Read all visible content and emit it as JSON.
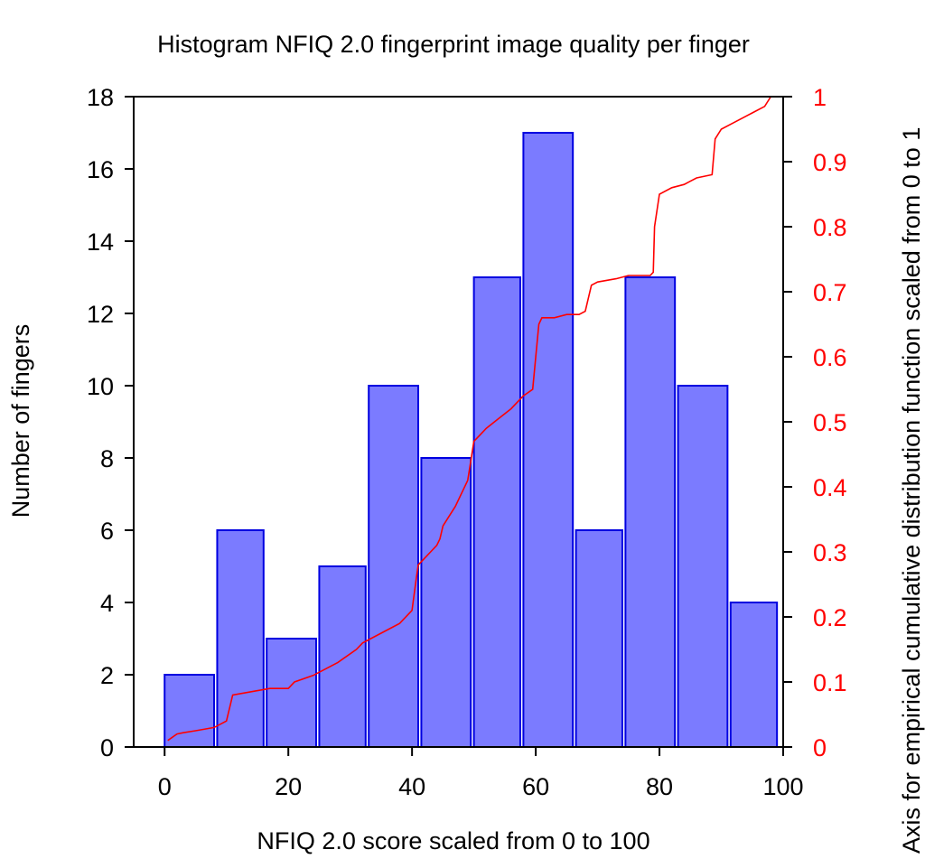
{
  "chart_data": {
    "type": "bar",
    "title": "Histogram NFIQ 2.0 fingerprint image quality per finger",
    "xlabel": "NFIQ 2.0 score scaled from 0 to 100",
    "ylabel": "Number of fingers",
    "y2label": "Axis for empirical cumulative distribution function scaled from 0 to 1",
    "xlim": [
      -5,
      100
    ],
    "ylim": [
      0,
      18
    ],
    "y2lim": [
      0,
      1
    ],
    "x_ticks": [
      "0",
      "20",
      "40",
      "60",
      "80",
      "100"
    ],
    "y_ticks": [
      "0",
      "2",
      "4",
      "6",
      "8",
      "10",
      "12",
      "14",
      "16",
      "18"
    ],
    "y2_ticks": [
      "0",
      "0.1",
      "0.2",
      "0.3",
      "0.4",
      "0.5",
      "0.6",
      "0.7",
      "0.8",
      "0.9",
      "1"
    ],
    "grid": false,
    "legend": "none",
    "bars": [
      {
        "x0": 0,
        "x1": 8,
        "value": 2
      },
      {
        "x0": 8.5,
        "x1": 16,
        "value": 6
      },
      {
        "x0": 16.5,
        "x1": 24.5,
        "value": 3
      },
      {
        "x0": 25,
        "x1": 32.5,
        "value": 5
      },
      {
        "x0": 33,
        "x1": 41,
        "value": 10
      },
      {
        "x0": 41.5,
        "x1": 49.5,
        "value": 8
      },
      {
        "x0": 50,
        "x1": 57.5,
        "value": 13
      },
      {
        "x0": 58,
        "x1": 66,
        "value": 17
      },
      {
        "x0": 66.5,
        "x1": 74,
        "value": 6
      },
      {
        "x0": 74.5,
        "x1": 82.5,
        "value": 13
      },
      {
        "x0": 83,
        "x1": 91,
        "value": 10
      },
      {
        "x0": 91.5,
        "x1": 99,
        "value": 4
      }
    ],
    "ecdf": {
      "x": [
        0.5,
        2,
        3,
        5,
        8,
        10,
        11,
        14,
        17,
        20,
        21,
        24,
        28,
        31,
        32,
        35,
        38,
        40,
        40.7,
        41,
        43,
        44,
        44.5,
        45,
        47,
        49,
        50,
        51,
        52,
        54,
        56,
        58,
        59.5,
        60,
        60.5,
        61,
        63,
        65,
        67,
        68,
        69,
        70,
        73,
        75,
        78.5,
        79,
        79.2,
        80,
        82,
        84,
        86,
        88.5,
        89,
        90,
        92,
        95,
        97,
        98
      ],
      "y": [
        0.01,
        0.02,
        0.022,
        0.025,
        0.03,
        0.04,
        0.08,
        0.085,
        0.09,
        0.09,
        0.1,
        0.11,
        0.13,
        0.15,
        0.16,
        0.175,
        0.19,
        0.21,
        0.26,
        0.28,
        0.3,
        0.31,
        0.32,
        0.34,
        0.37,
        0.41,
        0.47,
        0.48,
        0.49,
        0.505,
        0.52,
        0.54,
        0.55,
        0.6,
        0.65,
        0.66,
        0.66,
        0.665,
        0.665,
        0.67,
        0.71,
        0.715,
        0.72,
        0.725,
        0.725,
        0.73,
        0.8,
        0.85,
        0.86,
        0.865,
        0.875,
        0.88,
        0.935,
        0.95,
        0.96,
        0.975,
        0.985,
        1.0
      ]
    },
    "colors": {
      "bar_fill": "#7b7bff",
      "bar_stroke": "#0000e0",
      "ecdf_line": "#ff0000",
      "right_axis_text": "#ff0000",
      "axis": "#000000"
    }
  }
}
